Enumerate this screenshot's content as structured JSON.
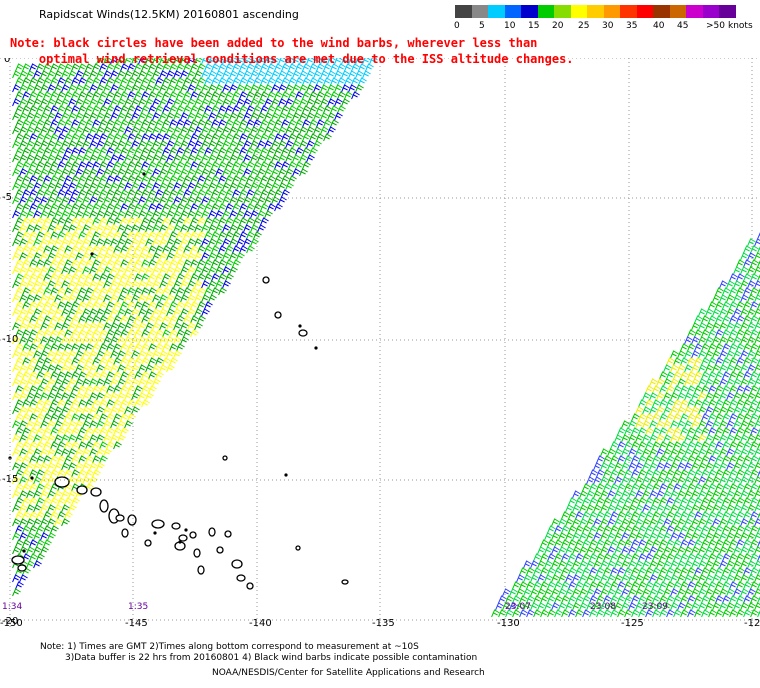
{
  "title": "Rapidscat Winds(12.5KM) 20160801 ascending",
  "note": {
    "line1": "Note: black circles have been added to the wind barbs, wherever less than",
    "line2": "    optimal wind retrieval conditions are met due to the ISS altitude changes."
  },
  "colorbar": {
    "colors": [
      "#444444",
      "#888888",
      "#00ccff",
      "#0066ff",
      "#0000cc",
      "#00cc00",
      "#88dd00",
      "#ffff00",
      "#ffcc00",
      "#ff9900",
      "#ff3300",
      "#ff0000",
      "#993300",
      "#cc6600",
      "#cc00cc",
      "#9900cc",
      "#660099"
    ],
    "labels": [
      "0",
      "5",
      "10",
      "15",
      "20",
      "25",
      "30",
      "35",
      "40",
      "45",
      ">50",
      "knots"
    ]
  },
  "map": {
    "lon_ticks": [
      "-150",
      "-145",
      "-140",
      "-135",
      "-130",
      "-125",
      "-12"
    ],
    "lat_ticks": [
      "0",
      "-5",
      "-10",
      "-15",
      "-20"
    ],
    "time_labels": [
      "1:34",
      "1:35",
      "23:07",
      "23:08",
      "23:09"
    ],
    "barb_colors": [
      "#00cc00",
      "#0000ee",
      "#ffff00",
      "#00aa00",
      "#3344ff",
      "#00dd44",
      "#eeee00"
    ],
    "grid_color": "#999999"
  },
  "footer": {
    "line1": "Note: 1) Times are GMT 2)Times along bottom correspond to measurement at ~10S",
    "line2": "3)Data buffer is 22 hrs from 20160801 4) Black wind barbs indicate possible contamination",
    "line3": "NOAA/NESDIS/Center for Satellite Applications and Research"
  }
}
